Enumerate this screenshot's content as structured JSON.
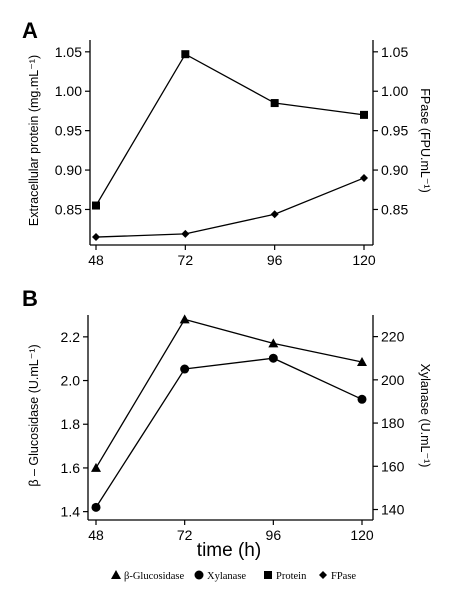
{
  "chart_data": [
    {
      "type": "line",
      "panel_label": "A",
      "x": [
        48,
        72,
        96,
        120
      ],
      "xlim": [
        48,
        120
      ],
      "xticks": [
        "48",
        "72",
        "96",
        "120"
      ],
      "xlabel": "",
      "left_axis": {
        "label": "Extracellular protein (mg.mL⁻¹)",
        "ylim": [
          0.81,
          1.065
        ],
        "ticks": [
          "0.85",
          "0.90",
          "0.95",
          "1.00",
          "1.05"
        ]
      },
      "right_axis": {
        "label": "FPase (FPU.mL⁻¹)",
        "ylim": [
          0.81,
          1.065
        ],
        "ticks": [
          "0.85",
          "0.90",
          "0.95",
          "1.00",
          "1.05"
        ]
      },
      "series": [
        {
          "name": "Protein",
          "axis": "left",
          "marker": "square",
          "values": [
            0.855,
            1.047,
            0.985,
            0.97
          ]
        },
        {
          "name": "FPase",
          "axis": "right",
          "marker": "diamond",
          "values": [
            0.815,
            0.819,
            0.844,
            0.89
          ]
        }
      ],
      "grid": false
    },
    {
      "type": "line",
      "panel_label": "B",
      "x": [
        48,
        72,
        96,
        120
      ],
      "xlim": [
        48,
        120
      ],
      "xticks": [
        "48",
        "72",
        "96",
        "120"
      ],
      "xlabel": "time (h)",
      "left_axis": {
        "label": "β – Glucosidase (U.mL⁻¹)",
        "ylim": [
          1.38,
          2.3
        ],
        "ticks": [
          "1.4",
          "1.6",
          "1.8",
          "2.0",
          "2.2"
        ]
      },
      "right_axis": {
        "label": "Xylanase (U.mL⁻¹)",
        "ylim": [
          137,
          230
        ],
        "ticks": [
          "140",
          "160",
          "180",
          "200",
          "220"
        ]
      },
      "series": [
        {
          "name": "β-Glucosidase",
          "axis": "left",
          "marker": "triangle",
          "values": [
            1.6,
            2.28,
            2.17,
            2.085
          ]
        },
        {
          "name": "Xylanase",
          "axis": "right",
          "marker": "circle",
          "values": [
            141,
            205,
            210,
            191
          ]
        }
      ],
      "grid": false
    }
  ],
  "legend": {
    "placement": "bottom",
    "items": [
      {
        "label": "β-Glucosidase",
        "marker": "triangle"
      },
      {
        "label": "Xylanase",
        "marker": "circle"
      },
      {
        "label": "Protein",
        "marker": "square"
      },
      {
        "label": "FPase",
        "marker": "diamond"
      }
    ]
  },
  "colors": {
    "line": "#000000",
    "marker": "#000000",
    "background": "#ffffff"
  }
}
